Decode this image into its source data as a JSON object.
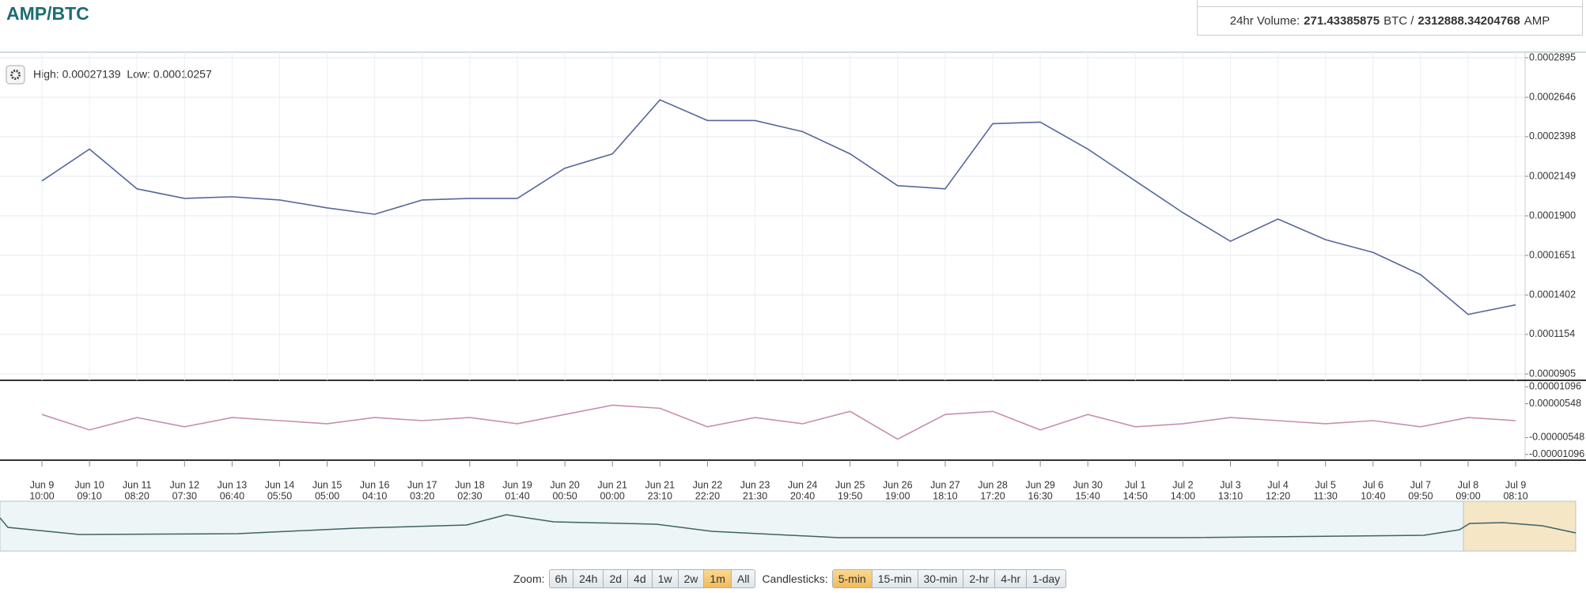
{
  "header": {
    "title": "AMP/BTC",
    "volume": {
      "label": "24hr Volume:",
      "btc": "271.43385875",
      "btc_unit": "BTC /",
      "amp": "2312888.34204768",
      "amp_unit": "AMP"
    }
  },
  "chart_data": [
    {
      "type": "line",
      "stats": "High: 0.00027139  Low: 0.00010257",
      "categories": [
        [
          "Jun 9",
          "10:00"
        ],
        [
          "Jun 10",
          "09:10"
        ],
        [
          "Jun 11",
          "08:20"
        ],
        [
          "Jun 12",
          "07:30"
        ],
        [
          "Jun 13",
          "06:40"
        ],
        [
          "Jun 14",
          "05:50"
        ],
        [
          "Jun 15",
          "05:00"
        ],
        [
          "Jun 16",
          "04:10"
        ],
        [
          "Jun 17",
          "03:20"
        ],
        [
          "Jun 18",
          "02:30"
        ],
        [
          "Jun 19",
          "01:40"
        ],
        [
          "Jun 20",
          "00:50"
        ],
        [
          "Jun 21",
          "00:00"
        ],
        [
          "Jun 21",
          "23:10"
        ],
        [
          "Jun 22",
          "22:20"
        ],
        [
          "Jun 23",
          "21:30"
        ],
        [
          "Jun 24",
          "20:40"
        ],
        [
          "Jun 25",
          "19:50"
        ],
        [
          "Jun 26",
          "19:00"
        ],
        [
          "Jun 27",
          "18:10"
        ],
        [
          "Jun 28",
          "17:20"
        ],
        [
          "Jun 29",
          "16:30"
        ],
        [
          "Jun 30",
          "15:40"
        ],
        [
          "Jul 1",
          "14:50"
        ],
        [
          "Jul 2",
          "14:00"
        ],
        [
          "Jul 3",
          "13:10"
        ],
        [
          "Jul 4",
          "12:20"
        ],
        [
          "Jul 5",
          "11:30"
        ],
        [
          "Jul 6",
          "10:40"
        ],
        [
          "Jul 7",
          "09:50"
        ],
        [
          "Jul 8",
          "09:00"
        ],
        [
          "Jul 9",
          "08:10"
        ]
      ],
      "values": [
        0.000212,
        0.000232,
        0.000207,
        0.000201,
        0.000202,
        0.0002,
        0.000195,
        0.000191,
        0.0002,
        0.000201,
        0.000201,
        0.00022,
        0.000229,
        0.000263,
        0.00025,
        0.00025,
        0.000243,
        0.000229,
        0.000209,
        0.000207,
        0.000248,
        0.000249,
        0.000232,
        0.000212,
        0.000192,
        0.000174,
        0.000188,
        0.000175,
        0.000167,
        0.000153,
        0.000128,
        0.000134
      ],
      "color": "#56679b",
      "ylim": [
        8.65e-05,
        0.000293
      ],
      "yticks": [
        0.0002895,
        0.0002646,
        0.0002398,
        0.0002149,
        {
          "value": 0.00019,
          "label": "0.0001900"
        },
        0.0001651,
        0.0001402,
        0.0001154,
        9.05e-05
      ],
      "grid": true
    },
    {
      "type": "line",
      "values": [
        2e-06,
        -3e-06,
        1e-06,
        -2e-06,
        1e-06,
        0.0,
        -1e-06,
        1e-06,
        0.0,
        1e-06,
        -1e-06,
        2e-06,
        5e-06,
        4e-06,
        -2e-06,
        1e-06,
        -1e-06,
        3e-06,
        -6e-06,
        2e-06,
        3e-06,
        -3e-06,
        2e-06,
        -2e-06,
        -1e-06,
        1e-06,
        0.0,
        -1e-06,
        0.0,
        -2e-06,
        1e-06,
        0.0
      ],
      "color": "#c78fb0",
      "ylim": [
        -1.28e-05,
        1.28e-05
      ],
      "yticks": [
        1.096e-05,
        5.48e-06,
        -5.48e-06,
        -1.096e-05
      ],
      "grid": false
    }
  ],
  "controls": {
    "zoom_label": "Zoom:",
    "zoom": [
      "6h",
      "24h",
      "2d",
      "4d",
      "1w",
      "2w",
      "1m",
      "All"
    ],
    "zoom_active": 6,
    "candle_label": "Candlesticks:",
    "candles": [
      "5-min",
      "15-min",
      "30-min",
      "2-hr",
      "4-hr",
      "1-day"
    ],
    "candle_active": 0
  }
}
